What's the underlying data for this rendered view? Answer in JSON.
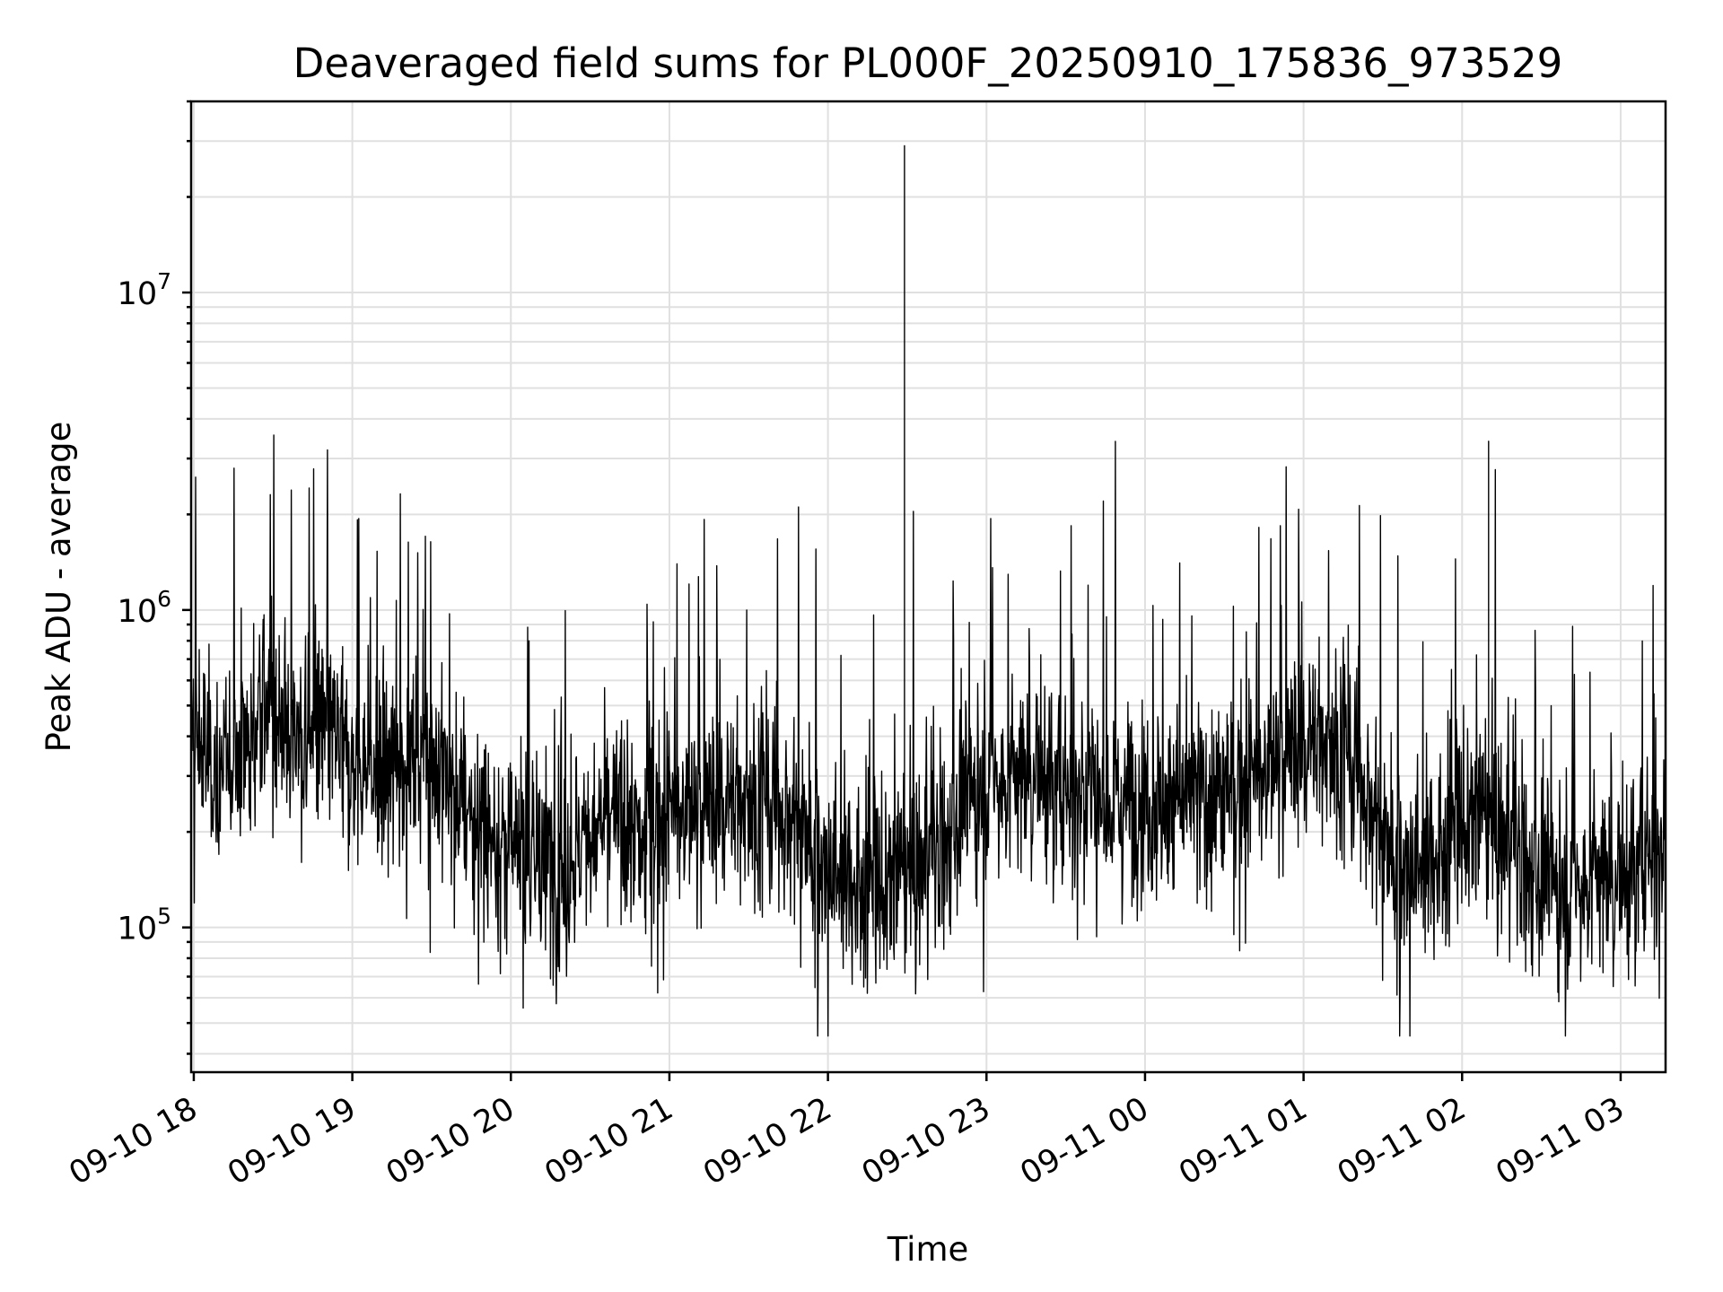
{
  "chart_data": {
    "type": "line",
    "title": "Deaveraged field sums for PL000F_20250910_175836_973529",
    "xlabel": "Time",
    "ylabel": "Peak ADU - average",
    "yscale": "log",
    "grid": true,
    "line_color": "#000000",
    "x_range": [
      "09-10 17:59",
      "09-11 03:17"
    ],
    "ylim": [
      35000,
      40000000
    ],
    "x_ticks": [
      "09-10 18",
      "09-10 19",
      "09-10 20",
      "09-10 21",
      "09-10 22",
      "09-10 23",
      "09-11 00",
      "09-11 01",
      "09-11 02",
      "09-11 03"
    ],
    "y_ticks": [
      {
        "value": 100000,
        "base": "10",
        "exp": "5"
      },
      {
        "value": 1000000,
        "base": "10",
        "exp": "6"
      },
      {
        "value": 10000000,
        "base": "10",
        "exp": "7"
      }
    ],
    "series": [
      {
        "x": [
          "09-10 18:00",
          "09-10 18:10",
          "09-10 18:20",
          "09-10 18:30",
          "09-10 18:40",
          "09-10 18:50",
          "09-10 19:00",
          "09-10 19:10",
          "09-10 19:20",
          "09-10 19:30",
          "09-10 19:40",
          "09-10 19:50",
          "09-10 20:00",
          "09-10 20:10",
          "09-10 20:20",
          "09-10 20:30",
          "09-10 20:40",
          "09-10 20:50",
          "09-10 21:00",
          "09-10 21:10",
          "09-10 21:20",
          "09-10 21:30",
          "09-10 21:40",
          "09-10 21:50",
          "09-10 22:00",
          "09-10 22:10",
          "09-10 22:20",
          "09-10 22:30",
          "09-10 22:40",
          "09-10 22:50",
          "09-10 23:00",
          "09-10 23:10",
          "09-10 23:20",
          "09-10 23:30",
          "09-10 23:40",
          "09-10 23:50",
          "09-11 00:00",
          "09-11 00:10",
          "09-11 00:20",
          "09-11 00:30",
          "09-11 00:40",
          "09-11 00:50",
          "09-11 01:00",
          "09-11 01:10",
          "09-11 01:20",
          "09-11 01:30",
          "09-11 01:40",
          "09-11 01:50",
          "09-11 02:00",
          "09-11 02:10",
          "09-11 02:20",
          "09-11 02:30",
          "09-11 02:40",
          "09-11 02:50",
          "09-11 03:00",
          "09-11 03:10"
        ],
        "values": [
          400000,
          300000,
          400000,
          500000,
          380000,
          420000,
          320000,
          300000,
          350000,
          380000,
          250000,
          200000,
          180000,
          160000,
          150000,
          200000,
          220000,
          180000,
          240000,
          230000,
          250000,
          260000,
          240000,
          220000,
          150000,
          140000,
          130000,
          150000,
          170000,
          230000,
          290000,
          300000,
          310000,
          280000,
          270000,
          260000,
          250000,
          240000,
          260000,
          270000,
          300000,
          330000,
          380000,
          400000,
          320000,
          200000,
          150000,
          170000,
          210000,
          220000,
          180000,
          140000,
          130000,
          150000,
          140000,
          180000
        ]
      }
    ],
    "annotations": [
      {
        "x": "09-10 22:29",
        "y": 29000000,
        "label": ""
      },
      {
        "x": "09-11 02:10",
        "y": 3400000,
        "label": ""
      }
    ]
  }
}
